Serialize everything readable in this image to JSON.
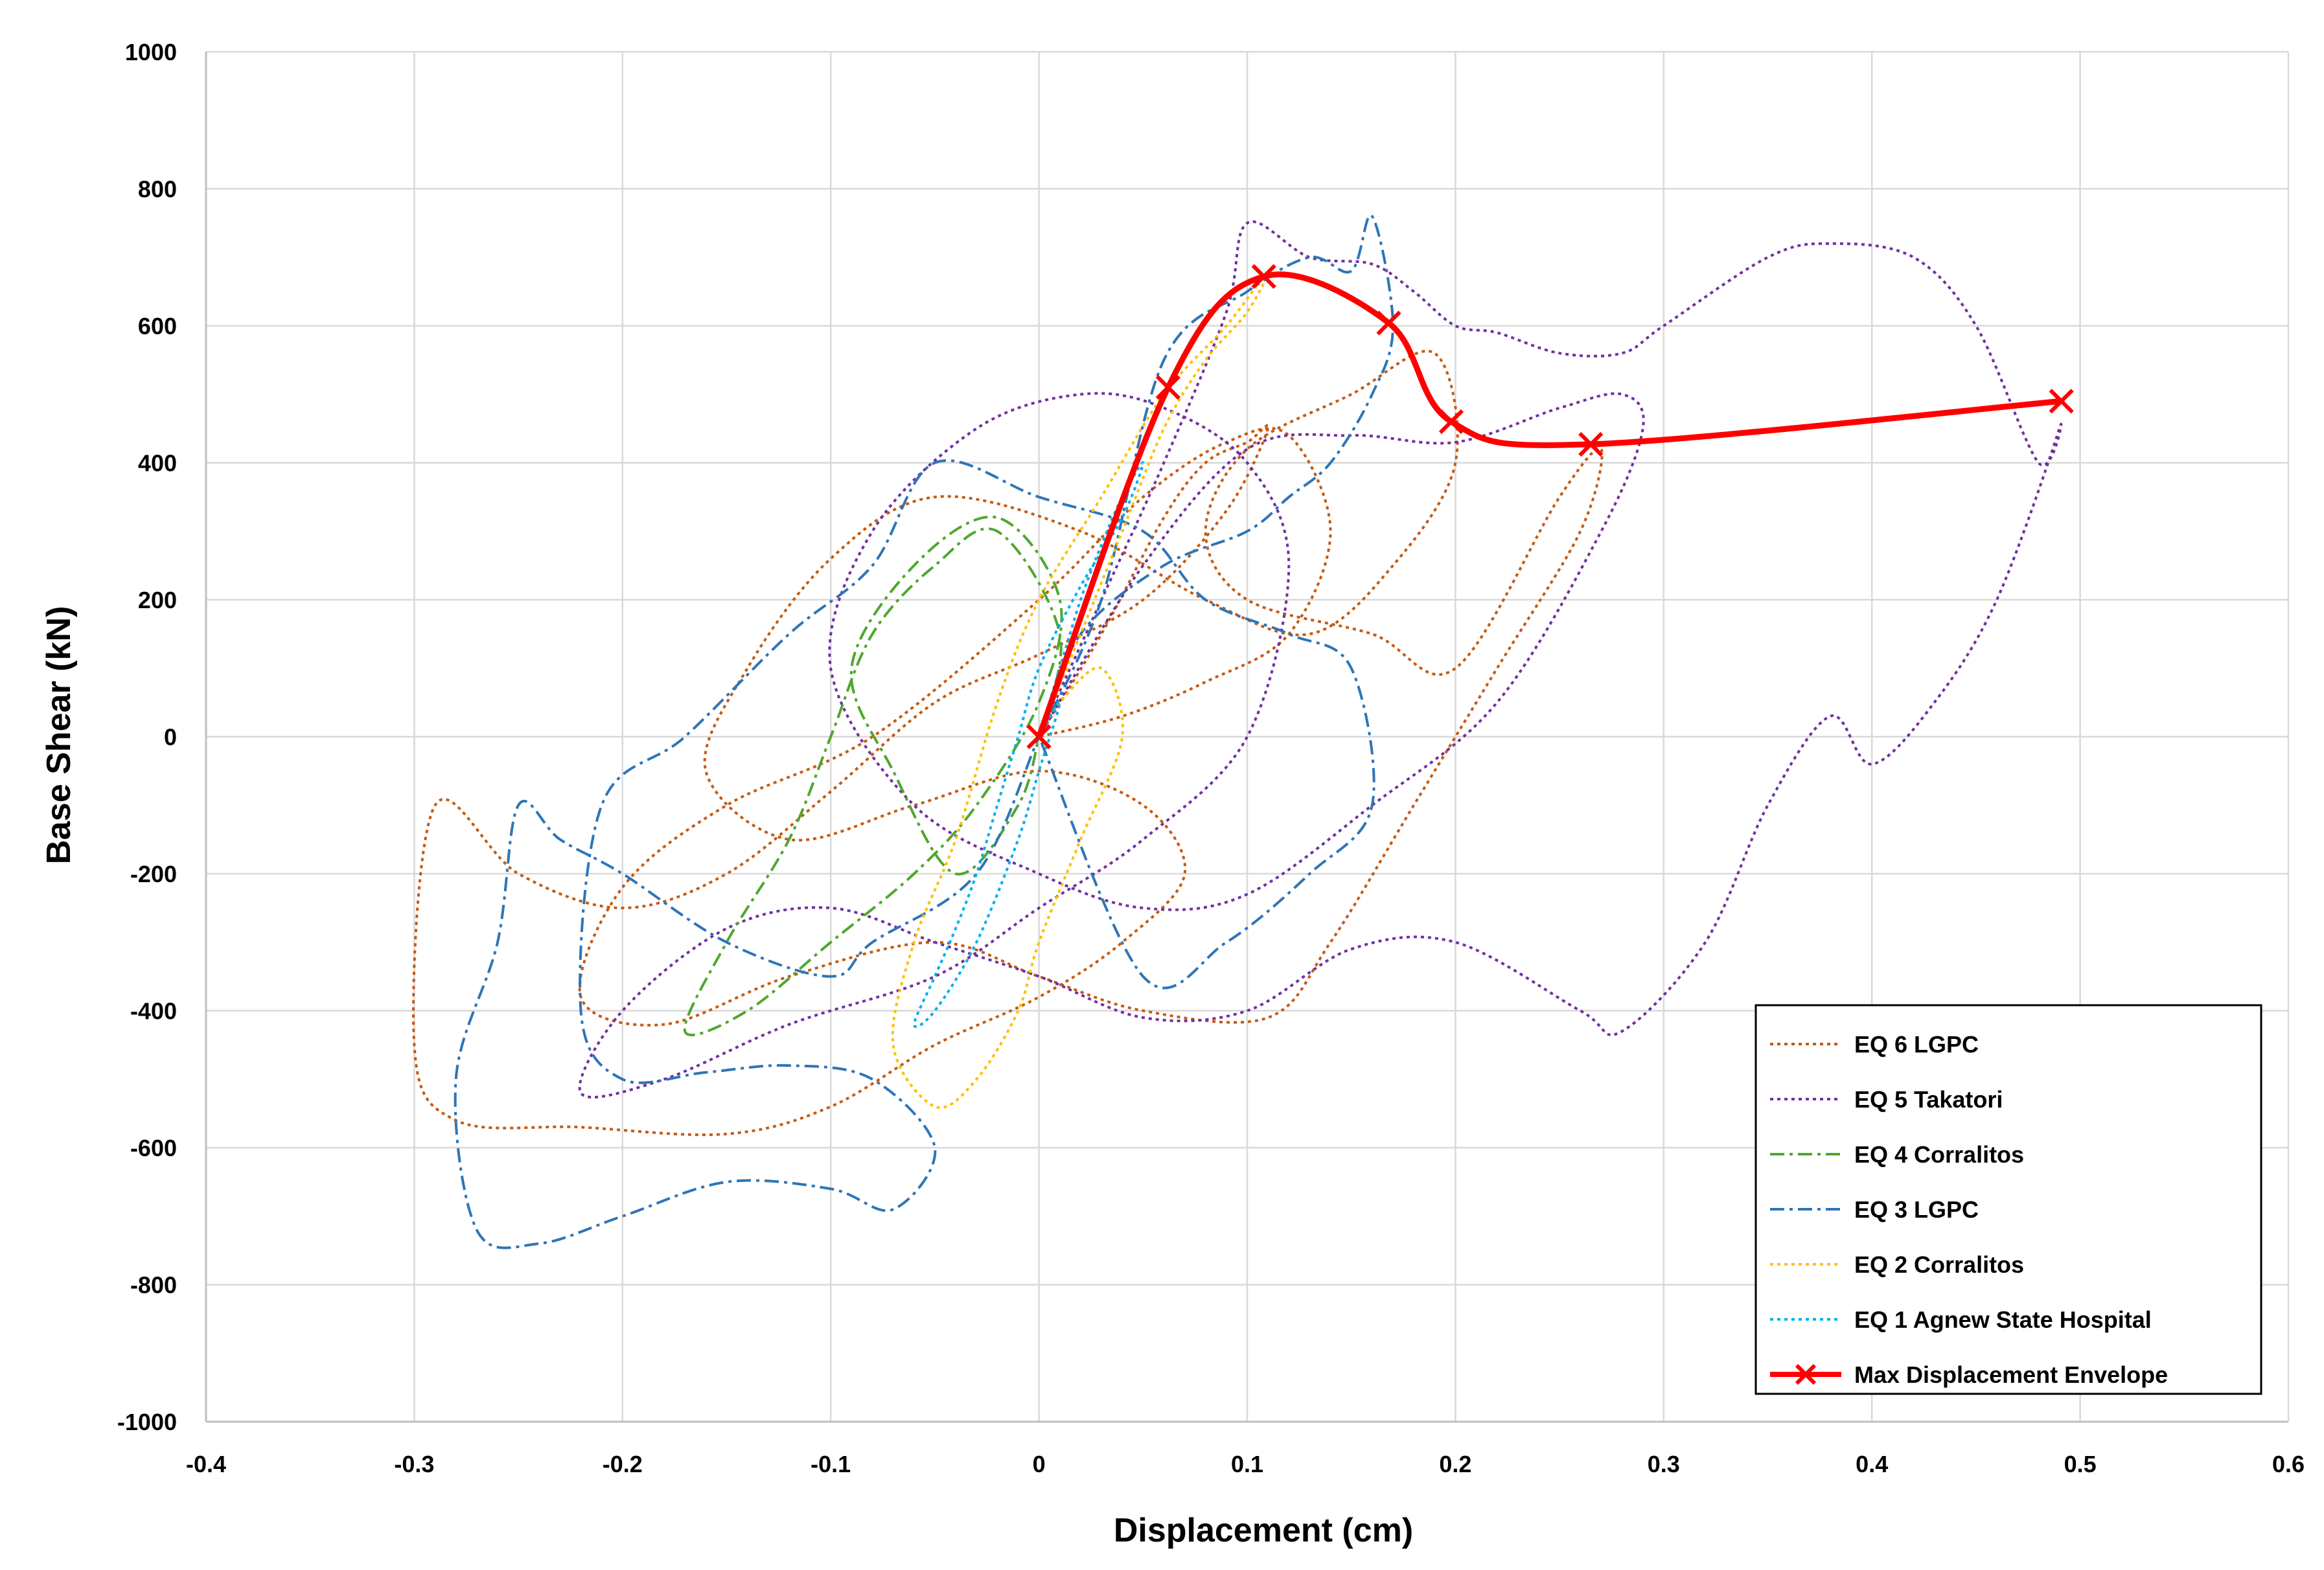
{
  "chart_data": {
    "type": "line",
    "title": "",
    "xlabel": "Displacement (cm)",
    "ylabel": "Base Shear (kN)",
    "xlim": [
      -0.4,
      0.6
    ],
    "ylim": [
      -1000,
      1000
    ],
    "xticks": [
      -0.4,
      -0.3,
      -0.2,
      -0.1,
      0,
      0.1,
      0.2,
      0.3,
      0.4,
      0.5,
      0.6
    ],
    "xtick_labels": [
      "-0.4",
      "-0.3",
      "-0.2",
      "-0.1",
      "0",
      "0.1",
      "0.2",
      "0.3",
      "0.4",
      "0.5",
      "0.6"
    ],
    "yticks": [
      -1000,
      -800,
      -600,
      -400,
      -200,
      0,
      200,
      400,
      600,
      800,
      1000
    ],
    "ytick_labels": [
      "-1000",
      "-800",
      "-600",
      "-400",
      "-200",
      "0",
      "200",
      "400",
      "600",
      "800",
      "1000"
    ],
    "grid": true,
    "legend_position": "bottom-right",
    "series": [
      {
        "name": "EQ 6 LGPC",
        "color": "#c55a11",
        "dash": "dot",
        "x": [
          0,
          0.03,
          0.06,
          0.08,
          0.1,
          0.11,
          0.09,
          0.05,
          0.0,
          -0.05,
          -0.1,
          -0.15,
          -0.2,
          -0.25,
          -0.29,
          -0.3,
          -0.28,
          -0.22,
          -0.15,
          -0.1,
          -0.05,
          0.0,
          0.04,
          0.07,
          0.05,
          0.0,
          -0.06,
          -0.12,
          -0.16,
          -0.14,
          -0.1,
          -0.05,
          0.02,
          0.08,
          0.13,
          0.17,
          0.2,
          0.19,
          0.15,
          0.1,
          0.08,
          0.1,
          0.16,
          0.2,
          0.25,
          0.27,
          0.26,
          0.22,
          0.18,
          0.14,
          0.11,
          0.05,
          0.0,
          -0.05,
          -0.12,
          -0.18,
          -0.22,
          -0.2,
          -0.15,
          -0.08,
          0.0,
          0.05,
          0.09,
          0.12,
          0.14,
          0.12,
          0.08,
          0.04,
          0.0
        ],
        "y": [
          0,
          150,
          320,
          400,
          430,
          450,
          330,
          200,
          120,
          50,
          -80,
          -200,
          -250,
          -200,
          -100,
          -450,
          -560,
          -570,
          -580,
          -540,
          -450,
          -380,
          -300,
          -200,
          -100,
          -50,
          -100,
          -150,
          -50,
          100,
          260,
          350,
          300,
          200,
          150,
          250,
          400,
          560,
          500,
          420,
          300,
          200,
          150,
          100,
          350,
          420,
          300,
          100,
          -100,
          -300,
          -410,
          -400,
          -350,
          -300,
          -350,
          -420,
          -380,
          -220,
          -100,
          0,
          200,
          350,
          430,
          440,
          300,
          150,
          80,
          30,
          0
        ]
      },
      {
        "name": "EQ 5 Takatori",
        "color": "#7030a0",
        "dash": "dot",
        "x": [
          0,
          0.03,
          0.06,
          0.09,
          0.1,
          0.13,
          0.16,
          0.18,
          0.2,
          0.22,
          0.25,
          0.28,
          0.3,
          0.35,
          0.38,
          0.42,
          0.45,
          0.48,
          0.49,
          0.46,
          0.43,
          0.4,
          0.38,
          0.35,
          0.32,
          0.28,
          0.26,
          0.2,
          0.15,
          0.1,
          0.05,
          0.0,
          -0.05,
          -0.1,
          -0.15,
          -0.2,
          -0.22,
          -0.18,
          -0.12,
          -0.05,
          0.0,
          0.05,
          0.1,
          0.12,
          0.1,
          0.06,
          0.02,
          -0.03,
          -0.08,
          -0.1,
          -0.06,
          0.0,
          0.05,
          0.1,
          0.16,
          0.22,
          0.27,
          0.29,
          0.28,
          0.25,
          0.2,
          0.15,
          0.1,
          0.05,
          0.0
        ],
        "y": [
          0,
          200,
          400,
          620,
          750,
          700,
          690,
          650,
          600,
          590,
          560,
          560,
          600,
          700,
          720,
          700,
          600,
          400,
          450,
          200,
          50,
          -40,
          30,
          -100,
          -300,
          -430,
          -400,
          -300,
          -310,
          -400,
          -410,
          -350,
          -300,
          -250,
          -280,
          -400,
          -520,
          -500,
          -420,
          -350,
          -250,
          -150,
          0,
          250,
          400,
          480,
          500,
          450,
          300,
          100,
          -100,
          -200,
          -250,
          -230,
          -100,
          50,
          300,
          450,
          500,
          480,
          430,
          440,
          420,
          250,
          0
        ]
      },
      {
        "name": "EQ 4 Corralitos",
        "color": "#4ea72e",
        "dash": "dashdot",
        "x": [
          0,
          0.01,
          -0.02,
          -0.05,
          -0.08,
          -0.1,
          -0.12,
          -0.15,
          -0.17,
          -0.14,
          -0.1,
          -0.06,
          -0.03,
          0.0,
          0.01,
          -0.02,
          -0.06,
          -0.09,
          -0.07,
          -0.04,
          -0.01,
          0.0
        ],
        "y": [
          0,
          150,
          300,
          250,
          150,
          0,
          -150,
          -300,
          -430,
          -400,
          -300,
          -200,
          -100,
          50,
          200,
          320,
          250,
          100,
          -50,
          -200,
          -100,
          0
        ]
      },
      {
        "name": "EQ 3 LGPC",
        "color": "#2e75b6",
        "dash": "dashdot",
        "x": [
          0,
          0.03,
          0.06,
          0.1,
          0.13,
          0.15,
          0.16,
          0.17,
          0.16,
          0.14,
          0.12,
          0.1,
          0.06,
          0.02,
          0.0,
          -0.03,
          -0.08,
          -0.1,
          -0.15,
          -0.2,
          -0.23,
          -0.25,
          -0.26,
          -0.28,
          -0.27,
          -0.24,
          -0.2,
          -0.15,
          -0.1,
          -0.07,
          -0.05,
          -0.08,
          -0.12,
          -0.16,
          -0.2,
          -0.22,
          -0.21,
          -0.17,
          -0.12,
          -0.08,
          -0.05,
          0.0,
          0.05,
          0.08,
          0.12,
          0.15,
          0.16,
          0.13,
          0.09,
          0.05,
          0.0
        ],
        "y": [
          0,
          200,
          550,
          650,
          700,
          680,
          760,
          600,
          500,
          400,
          350,
          300,
          250,
          150,
          0,
          -200,
          -300,
          -350,
          -300,
          -200,
          -150,
          -100,
          -300,
          -500,
          -720,
          -740,
          -700,
          -650,
          -660,
          -690,
          -600,
          -500,
          -480,
          -490,
          -500,
          -400,
          -100,
          0,
          150,
          250,
          400,
          350,
          300,
          200,
          150,
          100,
          -100,
          -200,
          -300,
          -350,
          0
        ]
      },
      {
        "name": "EQ 2 Corralitos",
        "color": "#ffc000",
        "dash": "dot",
        "x": [
          0,
          0.02,
          0.04,
          0.06,
          0.08,
          0.1,
          0.11,
          0.09,
          0.06,
          0.03,
          0.0,
          -0.02,
          -0.04,
          -0.06,
          -0.07,
          -0.05,
          -0.03,
          -0.01,
          0.0,
          0.02,
          0.04,
          0.03,
          0.01,
          0.0
        ],
        "y": [
          0,
          150,
          300,
          450,
          550,
          620,
          680,
          600,
          500,
          350,
          200,
          50,
          -150,
          -300,
          -450,
          -540,
          -500,
          -400,
          -300,
          -150,
          0,
          100,
          50,
          0
        ]
      },
      {
        "name": "EQ 1 Agnew State Hospital",
        "color": "#00b0f0",
        "dash": "dot",
        "x": [
          0,
          0.01,
          0.02,
          0.03,
          0.04,
          0.05,
          0.04,
          0.02,
          0.0,
          -0.01,
          -0.02,
          -0.03,
          -0.04,
          -0.05,
          -0.06,
          -0.05,
          -0.03,
          -0.01,
          0.0,
          0.01,
          0.0
        ],
        "y": [
          0,
          100,
          200,
          280,
          350,
          400,
          320,
          220,
          100,
          0,
          -100,
          -200,
          -280,
          -350,
          -420,
          -400,
          -300,
          -150,
          -50,
          50,
          0
        ]
      },
      {
        "name": "Max Displacement Envelope",
        "color": "#ff0000",
        "dash": "solid",
        "marker": "x",
        "x": [
          0,
          0.062,
          0.108,
          0.168,
          0.198,
          0.265,
          0.491
        ],
        "y": [
          0,
          510,
          672,
          604,
          460,
          427,
          490
        ]
      }
    ]
  }
}
